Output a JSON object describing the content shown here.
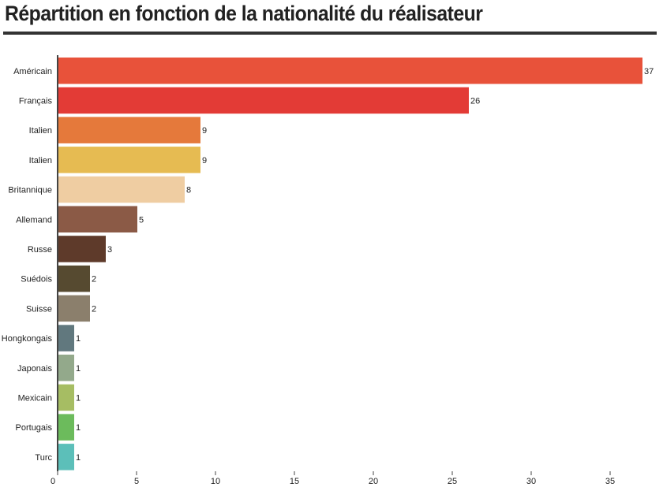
{
  "page": {
    "title": "Répartition en fonction de la nationalité du réalisateur"
  },
  "chart_data": {
    "type": "bar",
    "orientation": "horizontal",
    "title": "Répartition en fonction de la nationalité du réalisateur",
    "xlabel": "",
    "ylabel": "",
    "xlim": [
      0,
      38
    ],
    "xticks": [
      0,
      5,
      10,
      15,
      20,
      25,
      30,
      35
    ],
    "categories": [
      "Américain",
      "Français",
      "Italien",
      "Italien",
      "Britannique",
      "Allemand",
      "Russe",
      "Suédois",
      "Suisse",
      "Hongkongais",
      "Japonais",
      "Mexicain",
      "Portugais",
      "Turc"
    ],
    "values": [
      37,
      26,
      9,
      9,
      8,
      5,
      3,
      2,
      2,
      1,
      1,
      1,
      1,
      1
    ],
    "colors": [
      "#e8523a",
      "#e33b36",
      "#e5793b",
      "#e6bb52",
      "#efcda2",
      "#8b5a46",
      "#5e3a2a",
      "#564a30",
      "#8b7f6c",
      "#61787e",
      "#93a98b",
      "#a6bd63",
      "#6cbb5c",
      "#5cbfb9"
    ],
    "data_labels": [
      "37",
      "26",
      "9",
      "9",
      "8",
      "5",
      "3",
      "2",
      "2",
      "1",
      "1",
      "1",
      "1",
      "1"
    ],
    "grid": false,
    "legend": "none"
  }
}
